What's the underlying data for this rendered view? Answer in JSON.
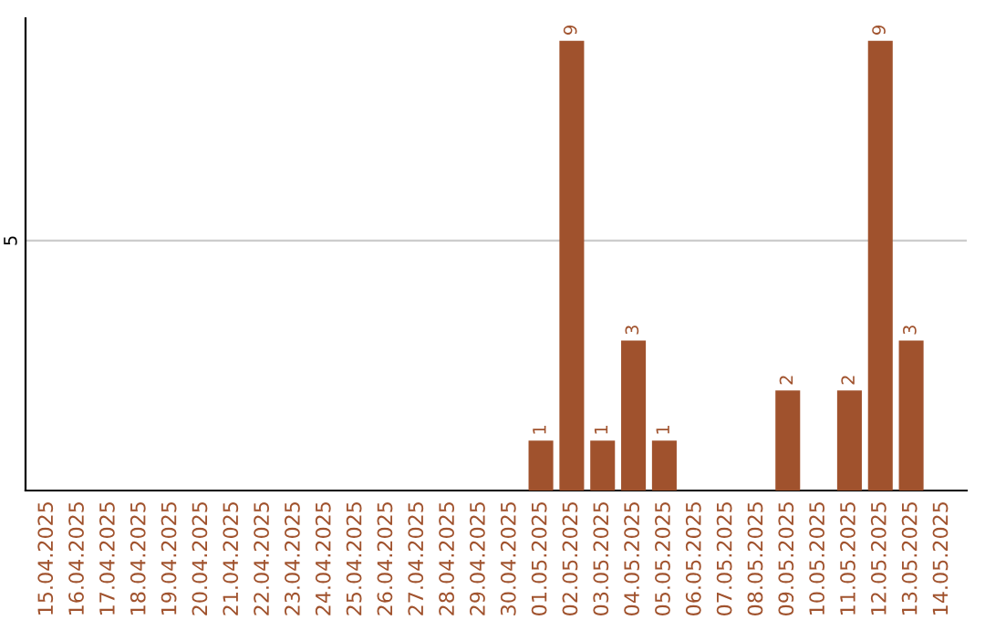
{
  "chart_data": {
    "type": "bar",
    "categories": [
      "15.04.2025",
      "16.04.2025",
      "17.04.2025",
      "18.04.2025",
      "19.04.2025",
      "20.04.2025",
      "21.04.2025",
      "22.04.2025",
      "23.04.2025",
      "24.04.2025",
      "25.04.2025",
      "26.04.2025",
      "27.04.2025",
      "28.04.2025",
      "29.04.2025",
      "30.04.2025",
      "01.05.2025",
      "02.05.2025",
      "03.05.2025",
      "04.05.2025",
      "05.05.2025",
      "06.05.2025",
      "07.05.2025",
      "08.05.2025",
      "09.05.2025",
      "10.05.2025",
      "11.05.2025",
      "12.05.2025",
      "13.05.2025",
      "14.05.2025"
    ],
    "values": [
      null,
      null,
      null,
      null,
      null,
      null,
      null,
      null,
      null,
      null,
      null,
      null,
      null,
      null,
      null,
      null,
      1,
      9,
      1,
      3,
      1,
      null,
      null,
      null,
      2,
      null,
      2,
      9,
      3,
      null
    ],
    "data_labels": true,
    "color": "#a0522d",
    "ref_lines": [
      {
        "axis": "y",
        "value": 5,
        "label": "5",
        "color": "#cccccc"
      }
    ],
    "legend": false
  }
}
